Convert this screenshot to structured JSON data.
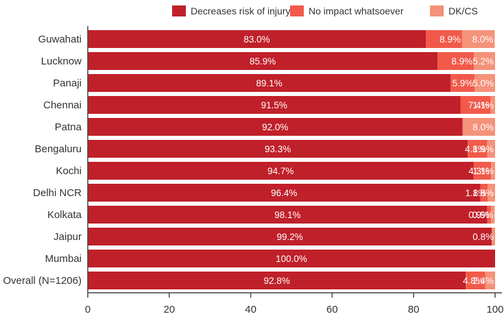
{
  "chart_data": {
    "type": "bar",
    "orientation": "horizontal",
    "stacked": true,
    "categories": [
      "Guwahati",
      "Lucknow",
      "Panaji",
      "Chennai",
      "Patna",
      "Bengaluru",
      "Kochi",
      "Delhi NCR",
      "Kolkata",
      "Jaipur",
      "Mumbai",
      "Overall (N=1206)"
    ],
    "series": [
      {
        "name": "Decreases risk of injury",
        "color": "#c0202a",
        "values": [
          83.0,
          85.9,
          89.1,
          91.5,
          92.0,
          93.3,
          94.7,
          96.4,
          98.1,
          99.2,
          100.0,
          92.8
        ],
        "labels": [
          "83.0%",
          "85.9%",
          "89.1%",
          "91.5%",
          "92.0%",
          "93.3%",
          "94.7%",
          "96.4%",
          "98.1%",
          "99.2%",
          "100.0%",
          "92.8%"
        ]
      },
      {
        "name": "No impact whatsoever",
        "color": "#f15a4a",
        "values": [
          8.9,
          8.9,
          5.9,
          7.4,
          0,
          4.8,
          4.3,
          1.8,
          0.9,
          0,
          0,
          4.8
        ],
        "labels": [
          "8.9%",
          "8.9%",
          "5.9%",
          "7.4%",
          "",
          "4.8%",
          "4.3%",
          "1.8%",
          "0.9%",
          "",
          "",
          "4.8%"
        ]
      },
      {
        "name": "DK/CS",
        "color": "#f4927a",
        "values": [
          8.0,
          5.2,
          5.0,
          1.1,
          8.0,
          1.9,
          1.1,
          1.8,
          0.9,
          0.8,
          0,
          2.4
        ],
        "labels": [
          "8.0%",
          "5.2%",
          "5.0%",
          "1.1%",
          "8.0%",
          "1.9%",
          "1.1%",
          "1.8%",
          "0.9%",
          "0.8%",
          "",
          "2.4%"
        ]
      }
    ],
    "xlim": [
      0,
      100
    ],
    "xticks": [
      0,
      20,
      40,
      60,
      80,
      100
    ],
    "xtick_labels": [
      "0",
      "20",
      "40",
      "60",
      "80",
      "100"
    ],
    "title": "",
    "xlabel": "",
    "ylabel": "",
    "grid": false,
    "legend_position": "top-right"
  }
}
